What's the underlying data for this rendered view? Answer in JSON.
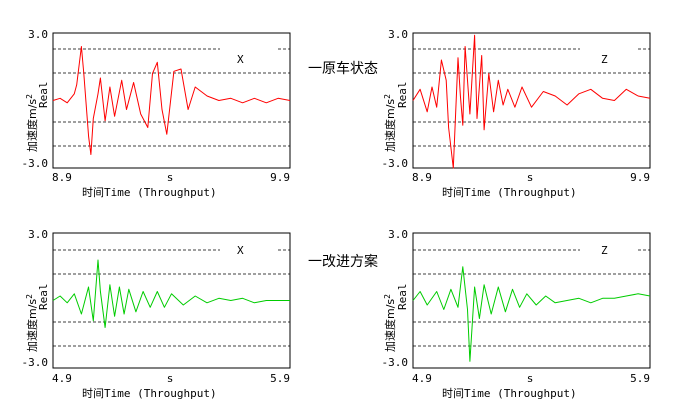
{
  "annotations": {
    "original_label": "一原车状态",
    "improved_label": "一改进方案",
    "original_color": "#ff0000",
    "improved_color": "#00cc00"
  },
  "chart_data": [
    {
      "type": "line",
      "axis_letter": "X",
      "ylabel_cn": "加速度m/s",
      "ylabel_sup": "2",
      "ylabel_real": "Real",
      "ytick_top": "3.0",
      "ytick_bottom": "-3.0",
      "xtick_left": "8.9",
      "xtick_mid": "s",
      "xtick_right": "9.9",
      "xlabel_cn": "时间",
      "xlabel": "Time (Throughput)",
      "xlim": [
        8.9,
        9.9
      ],
      "ylim": [
        -3,
        3
      ],
      "color": "#ff0000",
      "series": [
        {
          "x": [
            8.9,
            8.93,
            8.96,
            8.99,
            9.0,
            9.02,
            9.03,
            9.05,
            9.06,
            9.07,
            9.09,
            9.1,
            9.12,
            9.14,
            9.16,
            9.19,
            9.21,
            9.24,
            9.27,
            9.3,
            9.32,
            9.34,
            9.36,
            9.38,
            9.41,
            9.44,
            9.47,
            9.5,
            9.55,
            9.6,
            9.65,
            9.7,
            9.75,
            9.8,
            9.85,
            9.9
          ],
          "y": [
            0.0,
            0.1,
            -0.1,
            0.3,
            0.7,
            2.4,
            1.2,
            -1.6,
            -2.4,
            -0.8,
            0.3,
            1.0,
            -0.9,
            0.6,
            -0.7,
            0.9,
            -0.4,
            0.8,
            -0.6,
            -1.2,
            1.2,
            1.7,
            -0.4,
            -1.5,
            1.3,
            1.4,
            -0.4,
            0.6,
            0.2,
            0.0,
            0.1,
            -0.1,
            0.1,
            -0.1,
            0.1,
            0.0
          ]
        }
      ]
    },
    {
      "type": "line",
      "axis_letter": "Z",
      "ylabel_cn": "加速度m/s",
      "ylabel_sup": "2",
      "ylabel_real": "Real",
      "ytick_top": "3.0",
      "ytick_bottom": "-3.0",
      "xtick_left": "8.9",
      "xtick_mid": "s",
      "xtick_right": "9.9",
      "xlabel_cn": "时间",
      "xlabel": "Time (Throughput)",
      "xlim": [
        8.9,
        9.9
      ],
      "ylim": [
        -3,
        3
      ],
      "color": "#ff0000",
      "series": [
        {
          "x": [
            8.9,
            8.93,
            8.96,
            8.98,
            9.0,
            9.02,
            9.04,
            9.05,
            9.07,
            9.09,
            9.1,
            9.11,
            9.12,
            9.14,
            9.16,
            9.17,
            9.19,
            9.2,
            9.22,
            9.24,
            9.26,
            9.28,
            9.3,
            9.33,
            9.36,
            9.4,
            9.45,
            9.5,
            9.55,
            9.6,
            9.65,
            9.7,
            9.75,
            9.8,
            9.85,
            9.9
          ],
          "y": [
            0.0,
            0.5,
            -0.5,
            0.6,
            -0.3,
            1.8,
            0.9,
            -1.2,
            -3.0,
            1.9,
            0.2,
            -1.1,
            2.4,
            -0.6,
            2.9,
            -0.8,
            2.0,
            -1.3,
            1.2,
            -0.5,
            0.9,
            -0.2,
            0.5,
            -0.3,
            0.6,
            -0.3,
            0.4,
            0.2,
            -0.2,
            0.3,
            0.5,
            0.1,
            0.0,
            0.5,
            0.2,
            0.1
          ]
        }
      ]
    },
    {
      "type": "line",
      "axis_letter": "X",
      "ylabel_cn": "加速度m/s",
      "ylabel_sup": "2",
      "ylabel_real": "Real",
      "ytick_top": "3.0",
      "ytick_bottom": "-3.0",
      "xtick_left": "4.9",
      "xtick_mid": "s",
      "xtick_right": "5.9",
      "xlabel_cn": "时间",
      "xlabel": "Time (Throughput)",
      "xlim": [
        4.9,
        5.9
      ],
      "ylim": [
        -3,
        3
      ],
      "color": "#00cc00",
      "series": [
        {
          "x": [
            4.9,
            4.93,
            4.96,
            4.99,
            5.02,
            5.05,
            5.07,
            5.09,
            5.1,
            5.12,
            5.14,
            5.16,
            5.18,
            5.2,
            5.22,
            5.25,
            5.28,
            5.31,
            5.34,
            5.37,
            5.4,
            5.45,
            5.5,
            5.55,
            5.6,
            5.65,
            5.7,
            5.75,
            5.8,
            5.85,
            5.9
          ],
          "y": [
            0.0,
            0.2,
            -0.1,
            0.3,
            -0.6,
            0.6,
            -0.9,
            1.8,
            0.4,
            -1.2,
            0.7,
            -0.7,
            0.6,
            -0.6,
            0.5,
            -0.5,
            0.4,
            -0.3,
            0.4,
            -0.3,
            0.3,
            -0.2,
            0.2,
            -0.1,
            0.1,
            0.0,
            0.1,
            -0.1,
            0.0,
            0.0,
            0.0
          ]
        }
      ]
    },
    {
      "type": "line",
      "axis_letter": "Z",
      "ylabel_cn": "加速度m/s",
      "ylabel_sup": "2",
      "ylabel_real": "Real",
      "ytick_top": "3.0",
      "ytick_bottom": "-3.0",
      "xtick_left": "4.9",
      "xtick_mid": "s",
      "xtick_right": "5.9",
      "xlabel_cn": "时间",
      "xlabel": "Time (Throughput)",
      "xlim": [
        4.9,
        5.9
      ],
      "ylim": [
        -3,
        3
      ],
      "color": "#00cc00",
      "series": [
        {
          "x": [
            4.9,
            4.93,
            4.96,
            5.0,
            5.03,
            5.06,
            5.09,
            5.11,
            5.13,
            5.14,
            5.16,
            5.18,
            5.2,
            5.23,
            5.26,
            5.29,
            5.32,
            5.35,
            5.38,
            5.42,
            5.46,
            5.5,
            5.55,
            5.6,
            5.65,
            5.7,
            5.75,
            5.8,
            5.85,
            5.9
          ],
          "y": [
            0.0,
            0.4,
            -0.2,
            0.4,
            -0.4,
            0.5,
            -0.3,
            1.5,
            -0.4,
            -2.7,
            0.6,
            -0.8,
            0.7,
            -0.6,
            0.6,
            -0.5,
            0.5,
            -0.3,
            0.3,
            -0.2,
            0.2,
            -0.1,
            0.0,
            0.1,
            -0.1,
            0.1,
            0.1,
            0.2,
            0.3,
            0.2
          ]
        }
      ]
    }
  ]
}
